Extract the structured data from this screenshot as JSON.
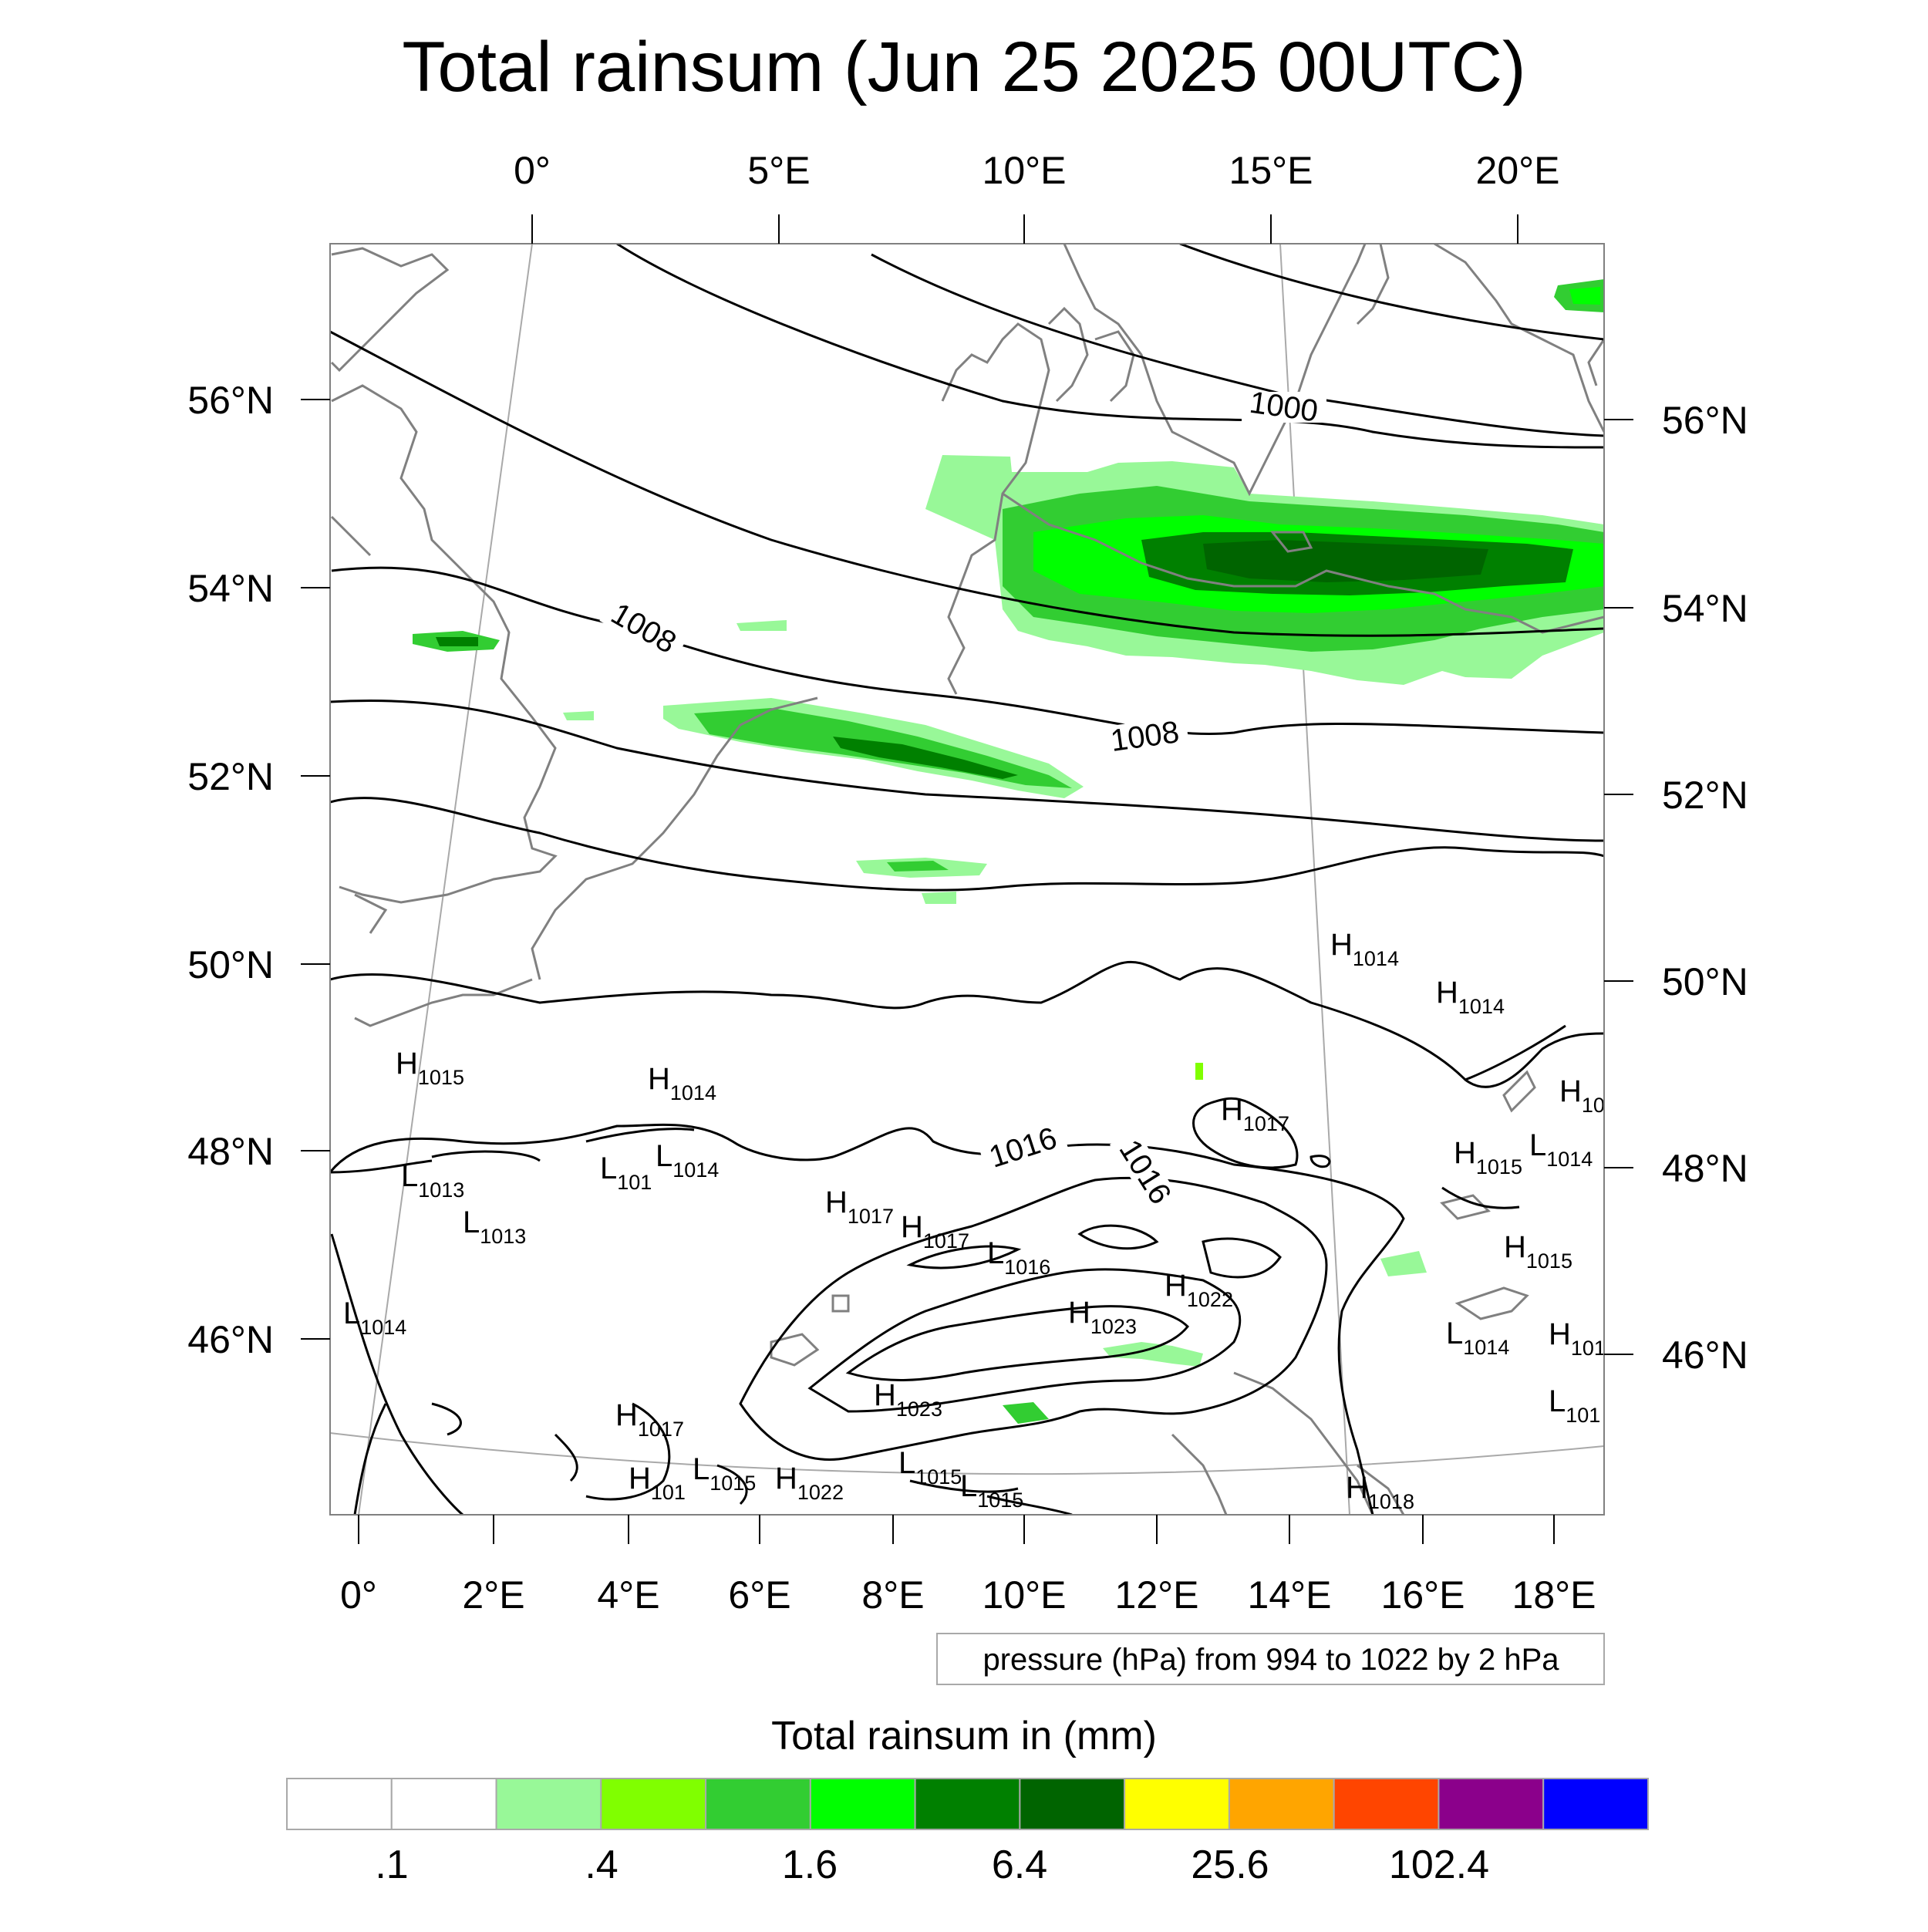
{
  "title": "Total rainsum (Jun 25 2025 00UTC)",
  "top_lon_labels": [
    "0°",
    "5°E",
    "10°E",
    "15°E",
    "20°E"
  ],
  "bottom_lon_labels": [
    "0°",
    "2°E",
    "4°E",
    "6°E",
    "8°E",
    "10°E",
    "12°E",
    "14°E",
    "16°E",
    "18°E"
  ],
  "left_lat_labels": [
    "56°N",
    "54°N",
    "52°N",
    "50°N",
    "48°N",
    "46°N"
  ],
  "right_lat_labels": [
    "56°N",
    "54°N",
    "52°N",
    "50°N",
    "48°N",
    "46°N"
  ],
  "contour_labels": [
    "1000",
    "1008",
    "1008",
    "1016",
    "1016"
  ],
  "pressure_centers": [
    {
      "t": "H",
      "v": "1015"
    },
    {
      "t": "H",
      "v": "1014"
    },
    {
      "t": "L",
      "v": "1013"
    },
    {
      "t": "L",
      "v": "1013"
    },
    {
      "t": "L",
      "v": "101"
    },
    {
      "t": "L",
      "v": "1014"
    },
    {
      "t": "L",
      "v": "1014"
    },
    {
      "t": "H",
      "v": "1017"
    },
    {
      "t": "H",
      "v": "1017"
    },
    {
      "t": "L",
      "v": "1016"
    },
    {
      "t": "H",
      "v": "1023"
    },
    {
      "t": "H",
      "v": "1022"
    },
    {
      "t": "H",
      "v": "1023"
    },
    {
      "t": "H",
      "v": "1017"
    },
    {
      "t": "H",
      "v": "101"
    },
    {
      "t": "L",
      "v": "1015"
    },
    {
      "t": "H",
      "v": "1022"
    },
    {
      "t": "L",
      "v": "1015"
    },
    {
      "t": "L",
      "v": "1015"
    },
    {
      "t": "H",
      "v": "1018"
    },
    {
      "t": "H",
      "v": "1014"
    },
    {
      "t": "H",
      "v": "1014"
    },
    {
      "t": "H",
      "v": "1017"
    },
    {
      "t": "H",
      "v": "10"
    },
    {
      "t": "H",
      "v": "1015"
    },
    {
      "t": "L",
      "v": "1014"
    },
    {
      "t": "H",
      "v": "1015"
    },
    {
      "t": "L",
      "v": "1014"
    },
    {
      "t": "H",
      "v": "101"
    },
    {
      "t": "L",
      "v": "101"
    }
  ],
  "contour_note": "pressure (hPa) from 994 to 1022 by 2 hPa",
  "legend": {
    "title": "Total rainsum in (mm)",
    "colors": [
      "#ffffff",
      "#ffffff",
      "#98f898",
      "#80ff00",
      "#32cd32",
      "#00ff00",
      "#008000",
      "#006400",
      "#ffff00",
      "#ffa500",
      "#ff4500",
      "#8b008b",
      "#0000ff"
    ],
    "labels": [
      ".1",
      ".4",
      "1.6",
      "6.4",
      "25.6",
      "102.4"
    ]
  },
  "colors": {
    "coastline": "#808080",
    "isobar": "#000000",
    "graticule": "#a9a9a9"
  }
}
